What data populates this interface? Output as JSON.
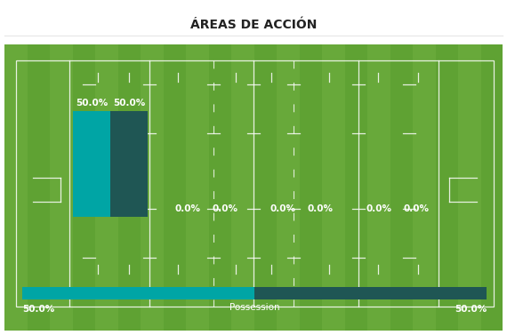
{
  "chart_data": [
    {
      "type": "bar",
      "title": "ÁREAS DE ACCIÓN",
      "categories": [
        null,
        null,
        null,
        null
      ],
      "series": [
        {
          "color": "#00a5a5",
          "values": [
            50.0,
            0.0,
            0.0,
            0.0
          ],
          "value_labels": [
            "50.0%",
            "0.0%",
            "0.0%",
            "0.0%"
          ]
        },
        {
          "color": "#1f5654",
          "values": [
            50.0,
            0.0,
            0.0,
            0.0
          ],
          "value_labels": [
            "50.0%",
            "0.0%",
            "0.0%",
            "0.0%"
          ]
        }
      ],
      "ylim": [
        0,
        50
      ],
      "yticks": [
        0,
        50
      ],
      "tick_labels": false,
      "data_labels": true
    },
    {
      "type": "bar",
      "orientation": "horizontal",
      "stacked": true,
      "categories": [
        null
      ],
      "x_label": "Possession",
      "series": [
        {
          "color": "#00a5a5",
          "values": [
            50.0
          ],
          "value_labels": [
            "50.0%"
          ]
        },
        {
          "color": "#1f5654",
          "values": [
            50.0
          ],
          "value_labels": [
            "50.0%"
          ]
        }
      ],
      "xlim": [
        0,
        100
      ],
      "xticks": [
        0,
        100
      ],
      "tick_labels": false,
      "data_labels": true
    }
  ]
}
